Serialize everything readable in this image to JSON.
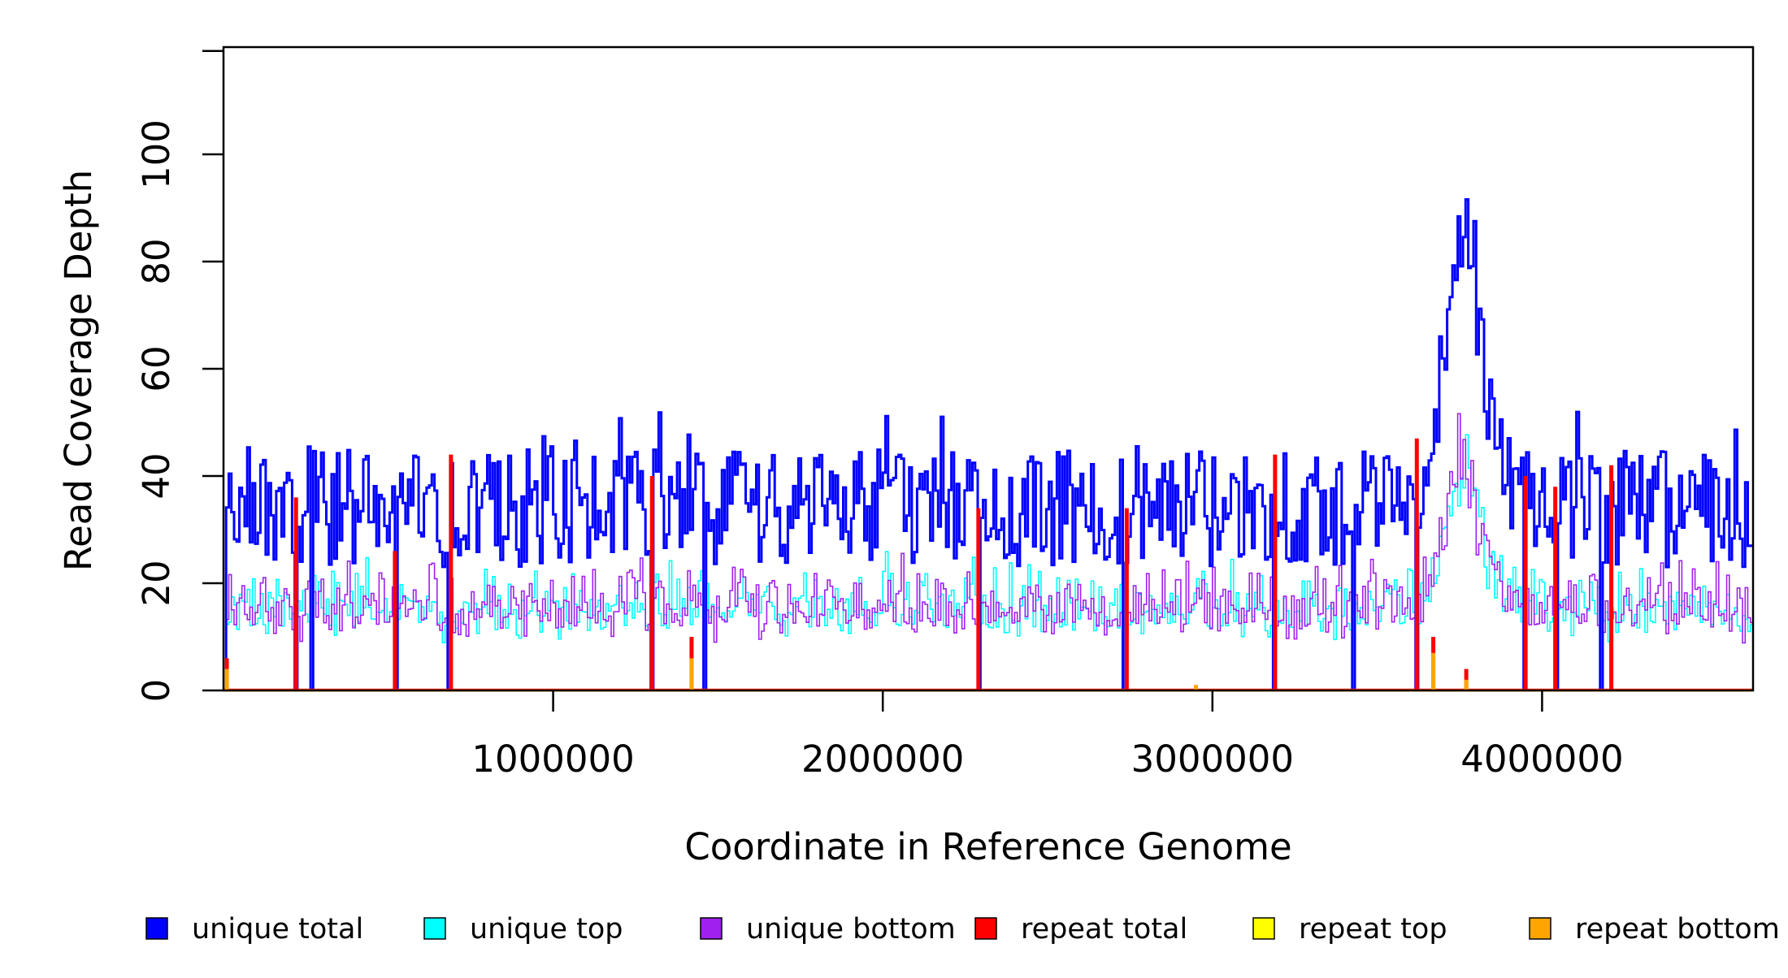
{
  "chart_data": {
    "type": "line",
    "title": "",
    "xlabel": "Coordinate in Reference Genome",
    "ylabel": "Read Coverage Depth",
    "xlim": [
      0,
      4640000
    ],
    "ylim": [
      0,
      120
    ],
    "x_ticks": [
      "1000000",
      "2000000",
      "3000000",
      "4000000"
    ],
    "x_tick_values": [
      1000000,
      2000000,
      3000000,
      4000000
    ],
    "y_ticks": [
      "0",
      "20",
      "40",
      "60",
      "80",
      "100"
    ],
    "y_tick_values": [
      0,
      20,
      40,
      60,
      80,
      100
    ],
    "bin_size": 8000,
    "legend_position": "bottom",
    "series": [
      {
        "name": "unique total",
        "color": "#0000ff"
      },
      {
        "name": "unique top",
        "color": "#00ffff"
      },
      {
        "name": "unique bottom",
        "color": "#a020f0"
      },
      {
        "name": "repeat total",
        "color": "#ff0000"
      },
      {
        "name": "repeat top",
        "color": "#ffff00"
      },
      {
        "name": "repeat bottom",
        "color": "#ffa500"
      }
    ],
    "repeat_spikes": [
      {
        "x": 10000,
        "total": 6,
        "bottom": 4
      },
      {
        "x": 220000,
        "total": 36,
        "bottom": 0
      },
      {
        "x": 520000,
        "total": 26,
        "bottom": 0
      },
      {
        "x": 690000,
        "total": 44,
        "bottom": 0
      },
      {
        "x": 1300000,
        "total": 40,
        "bottom": 0
      },
      {
        "x": 1420000,
        "total": 10,
        "bottom": 6
      },
      {
        "x": 2290000,
        "total": 34,
        "bottom": 0
      },
      {
        "x": 2740000,
        "total": 34,
        "bottom": 0
      },
      {
        "x": 2950000,
        "total": 1,
        "bottom": 1
      },
      {
        "x": 3190000,
        "total": 44,
        "bottom": 0
      },
      {
        "x": 3620000,
        "total": 47,
        "bottom": 0
      },
      {
        "x": 3670000,
        "total": 10,
        "bottom": 7
      },
      {
        "x": 3770000,
        "total": 4,
        "bottom": 2
      },
      {
        "x": 3950000,
        "total": 40,
        "bottom": 0
      },
      {
        "x": 4040000,
        "total": 38,
        "bottom": 0
      },
      {
        "x": 4210000,
        "total": 42,
        "bottom": 0
      }
    ],
    "dropouts": [
      220000,
      265000,
      520000,
      685000,
      1300000,
      1460000,
      2290000,
      2735000,
      3190000,
      3430000,
      3620000,
      3950000,
      4040000,
      4180000
    ]
  }
}
